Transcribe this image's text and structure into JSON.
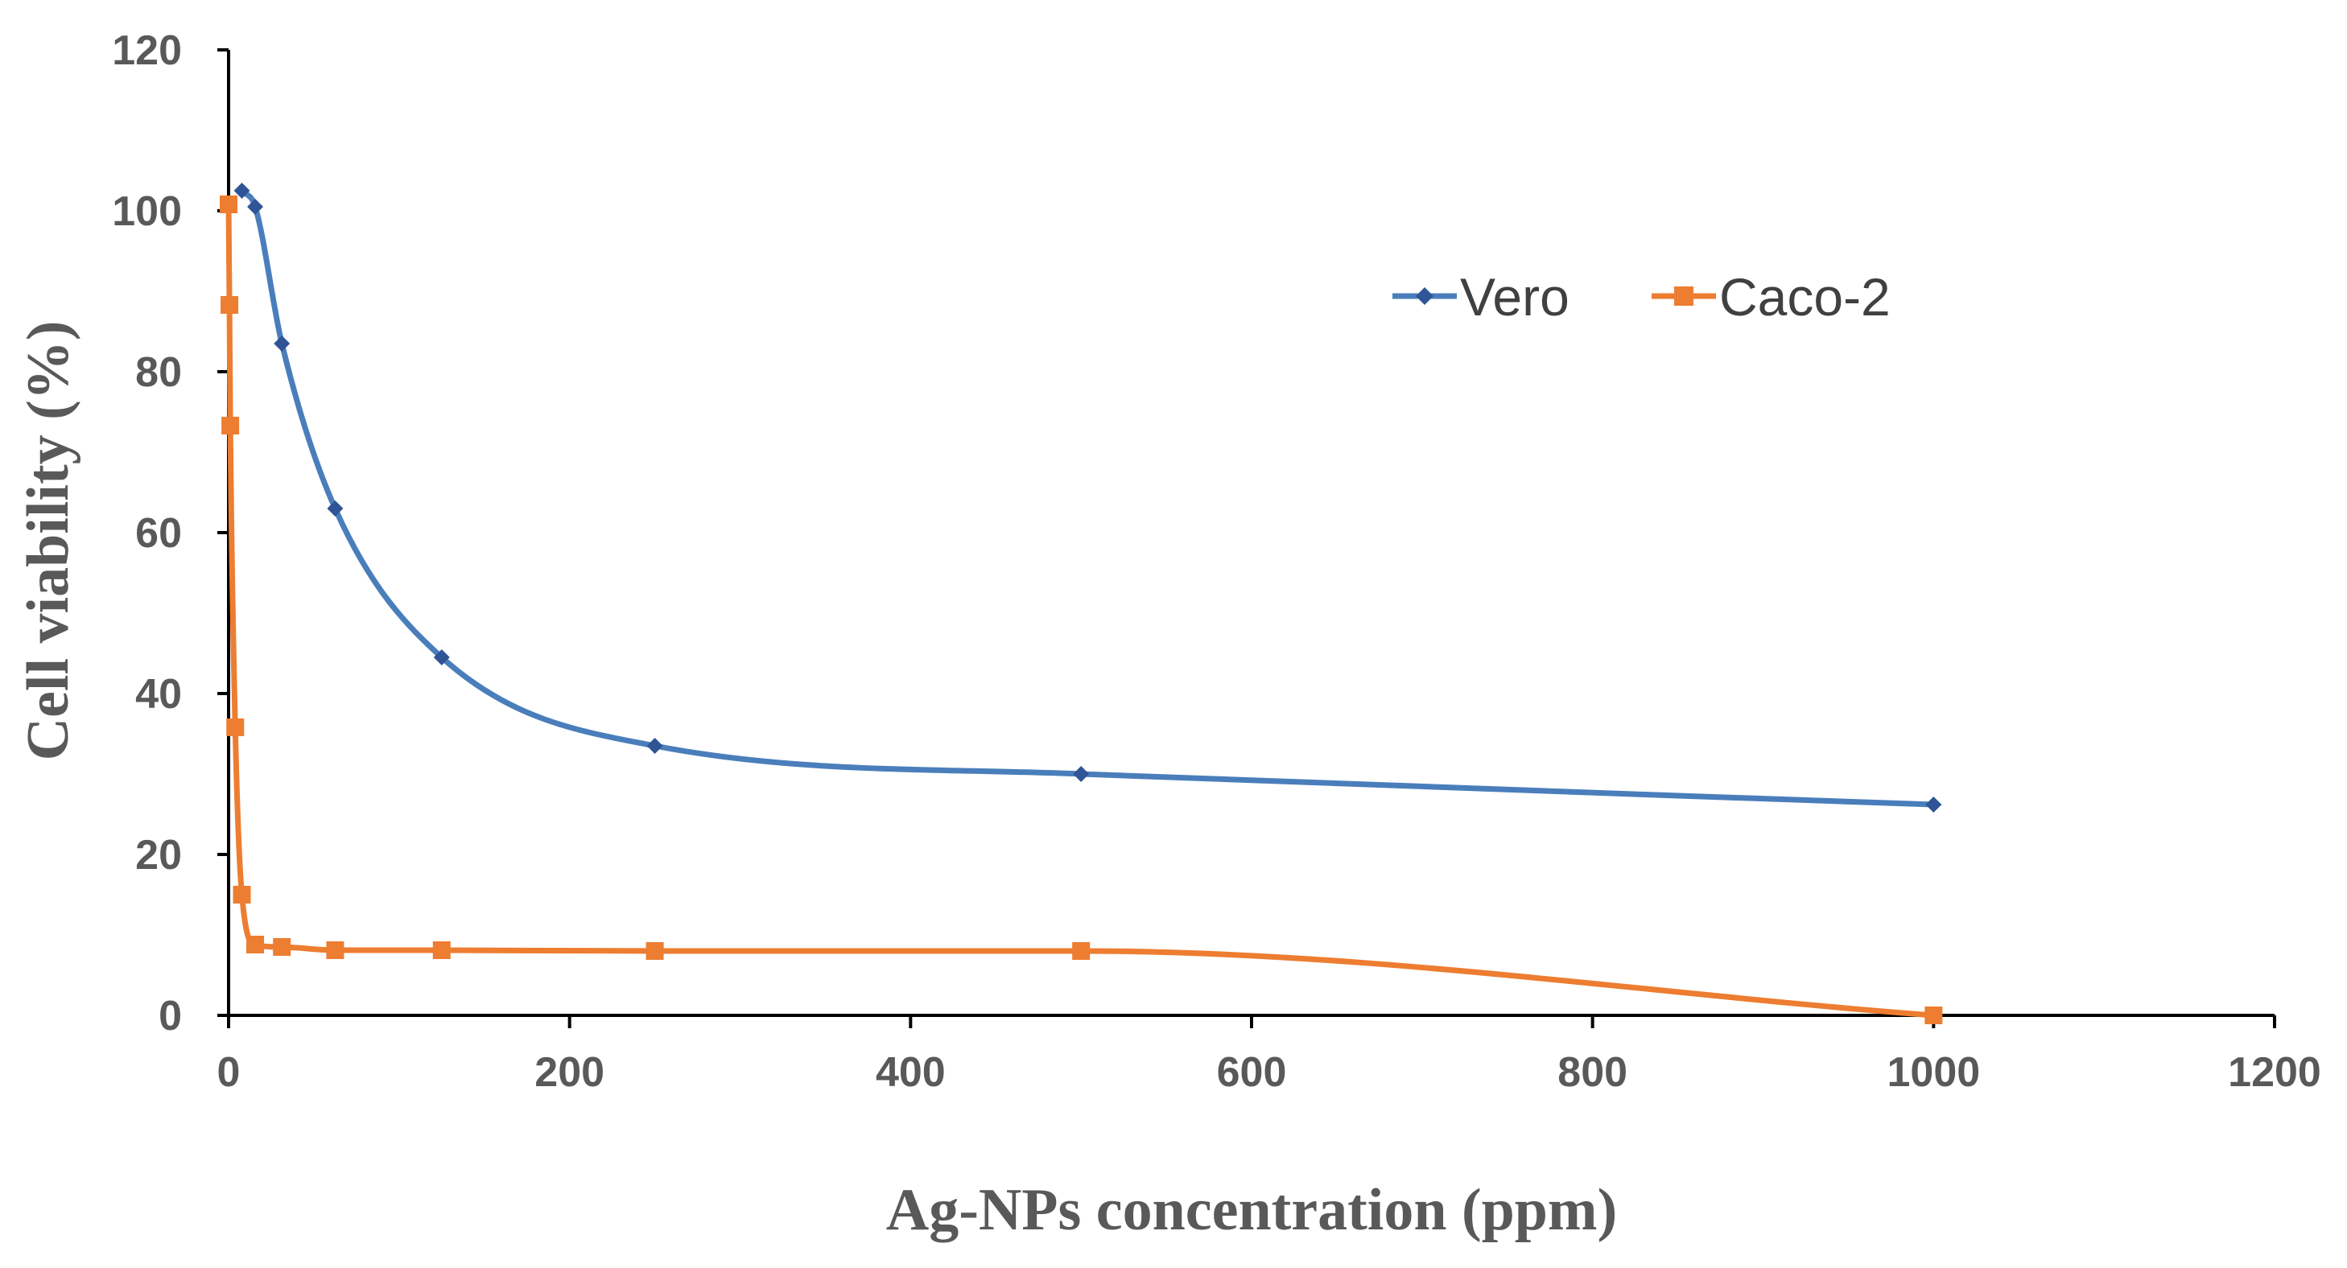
{
  "chart_data": {
    "type": "line",
    "title": "",
    "xlabel": "Ag-NPs concentration (ppm)",
    "ylabel": "Cell viability (%)",
    "xlim": [
      0,
      1200
    ],
    "ylim": [
      0,
      120
    ],
    "xticks": [
      0,
      200,
      400,
      600,
      800,
      1000,
      1200
    ],
    "yticks": [
      0,
      20,
      40,
      60,
      80,
      100,
      120
    ],
    "grid": false,
    "legend_position": "top-right",
    "series": [
      {
        "name": "Vero",
        "color": "#4A7EBB",
        "marker": "diamond",
        "points": [
          {
            "x": 7.8,
            "y": 102.5
          },
          {
            "x": 15.6,
            "y": 100.5
          },
          {
            "x": 31.25,
            "y": 83.5
          },
          {
            "x": 62.5,
            "y": 63
          },
          {
            "x": 125,
            "y": 44.5
          },
          {
            "x": 250,
            "y": 33.5
          },
          {
            "x": 500,
            "y": 30
          },
          {
            "x": 1000,
            "y": 26.2
          }
        ]
      },
      {
        "name": "Caco-2",
        "color": "#ED7D31",
        "marker": "square",
        "points": [
          {
            "x": 0,
            "y": 100.8
          },
          {
            "x": 0.5,
            "y": 88.3
          },
          {
            "x": 1,
            "y": 73.3
          },
          {
            "x": 3.9,
            "y": 35.8
          },
          {
            "x": 7.8,
            "y": 15
          },
          {
            "x": 15.6,
            "y": 8.8
          },
          {
            "x": 31.25,
            "y": 8.5
          },
          {
            "x": 62.5,
            "y": 8.1
          },
          {
            "x": 125,
            "y": 8.1
          },
          {
            "x": 250,
            "y": 8
          },
          {
            "x": 500,
            "y": 8
          },
          {
            "x": 1000,
            "y": 0
          }
        ]
      }
    ]
  }
}
